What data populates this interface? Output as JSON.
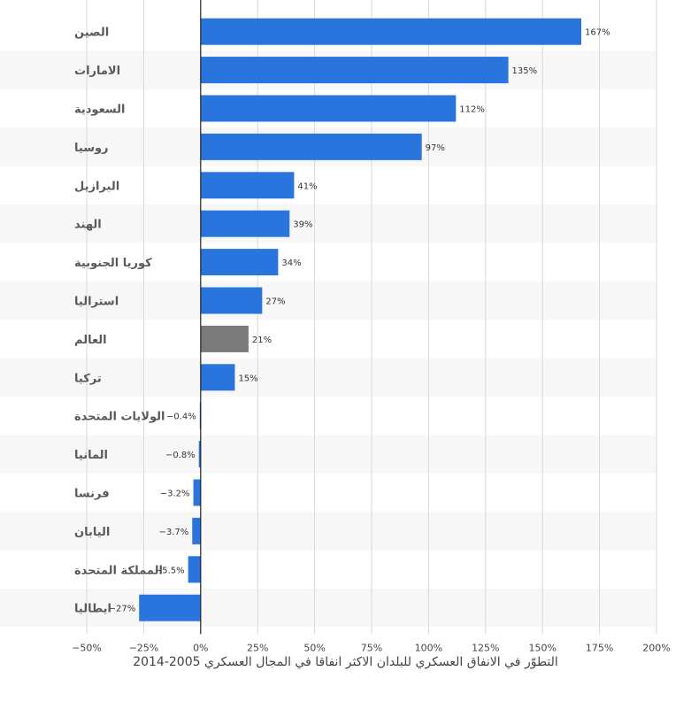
{
  "chart_data": {
    "type": "bar",
    "orientation": "horizontal",
    "categories": [
      "الصين",
      "الامارات",
      "السعودية",
      "روسيا",
      "البرازيل",
      "الهند",
      "كوريا الجنوبية",
      "استراليا",
      "العالم",
      "تركيا",
      "الولايات المتحدة",
      "المانيا",
      "فرنسا",
      "اليابان",
      "المملكة المتحدة",
      "ايطاليا"
    ],
    "values": [
      167,
      135,
      112,
      97,
      41,
      39,
      34,
      27,
      21,
      15,
      -0.4,
      -0.8,
      -3.2,
      -3.7,
      -5.5,
      -27
    ],
    "data_labels": [
      "167%",
      "135%",
      "112%",
      "97%",
      "41%",
      "39%",
      "34%",
      "27%",
      "21%",
      "15%",
      "-0.4%",
      "-0.8%",
      "-3.2%",
      "-3.7%",
      "-5.5%",
      "-27%"
    ],
    "highlight_index": 8,
    "xlim": [
      -50,
      200
    ],
    "x_ticks": [
      -50,
      -25,
      0,
      25,
      50,
      75,
      100,
      125,
      150,
      175,
      200
    ],
    "x_tick_labels": [
      "-50%",
      "-25%",
      "0%",
      "25%",
      "50%",
      "75%",
      "100%",
      "125%",
      "150%",
      "175%",
      "200%"
    ],
    "grid": "vertical",
    "colors": {
      "bar": "#2a74dd",
      "highlight": "#7a7a7a",
      "zero_line": "#222222",
      "grid": "#d9d9d9",
      "band": "#f7f7f7"
    },
    "caption": "التطوّر في الانفاق العسكري للبلدان الاكثر انفاقا في المجال العسكري 2005-2014"
  }
}
